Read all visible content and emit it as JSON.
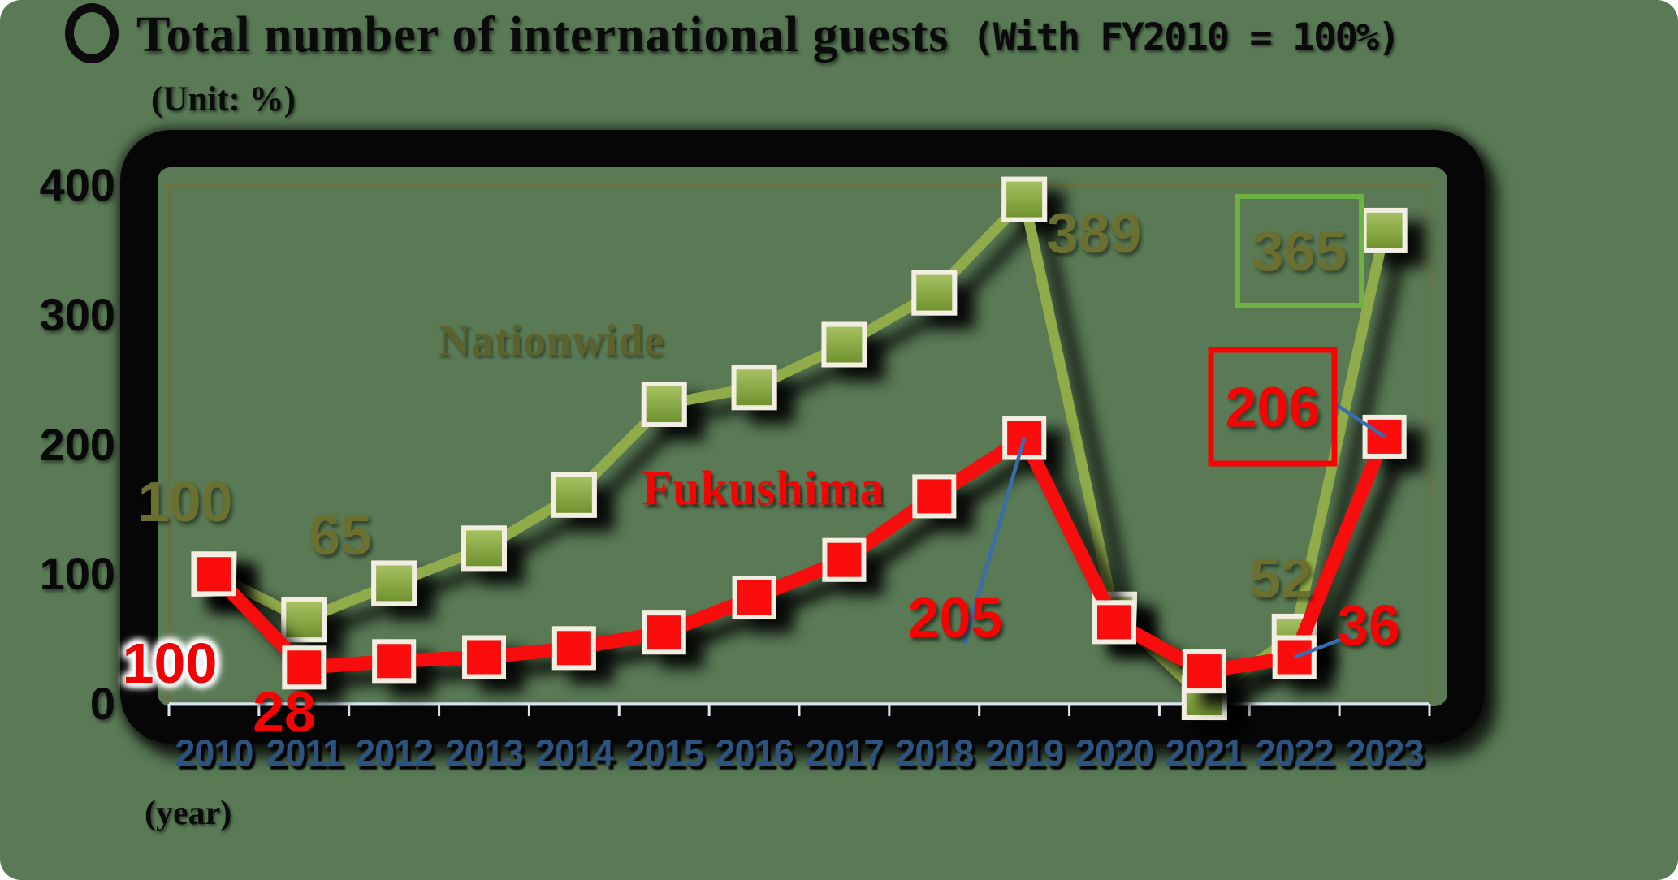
{
  "background_color": "#597a55",
  "chart_data": {
    "type": "line",
    "title": "Total number of international guests",
    "title_note": "(With FY2010 = 100%)",
    "unit_label": "(Unit: %)",
    "x_axis_label": "(year)",
    "categories": [
      "2010",
      "2011",
      "2012",
      "2013",
      "2014",
      "2015",
      "2016",
      "2017",
      "2018",
      "2019",
      "2020",
      "2021",
      "2022",
      "2023"
    ],
    "ylim": [
      0,
      400
    ],
    "yticks": [
      0,
      100,
      200,
      300,
      400
    ],
    "grid": false,
    "legend_position": "inline-floating-labels",
    "series": [
      {
        "name": "Nationwide",
        "marker": "square",
        "values": [
          100,
          65,
          93,
          120,
          161,
          231,
          244,
          277,
          317,
          389,
          69,
          5,
          52,
          365
        ]
      },
      {
        "name": "Fukushima",
        "marker": "square",
        "values": [
          100,
          28,
          33,
          36,
          43,
          55,
          82,
          111,
          160,
          205,
          63,
          25,
          36,
          206
        ]
      }
    ],
    "data_labels": [
      {
        "id": "nw-2010",
        "series": "Nationwide",
        "year": "2010",
        "text": "100",
        "boxed": false
      },
      {
        "id": "nw-2011",
        "series": "Nationwide",
        "year": "2011",
        "text": "65",
        "boxed": false
      },
      {
        "id": "nw-2019",
        "series": "Nationwide",
        "year": "2019",
        "text": "389",
        "boxed": false
      },
      {
        "id": "nw-2022",
        "series": "Nationwide",
        "year": "2022",
        "text": "52",
        "boxed": false
      },
      {
        "id": "nw-2023",
        "series": "Nationwide",
        "year": "2023",
        "text": "365",
        "boxed": true
      },
      {
        "id": "fk-2010",
        "series": "Fukushima",
        "year": "2010",
        "text": "100",
        "boxed": false,
        "glow": true
      },
      {
        "id": "fk-2011",
        "series": "Fukushima",
        "year": "2011",
        "text": "28",
        "boxed": false
      },
      {
        "id": "fk-2019",
        "series": "Fukushima",
        "year": "2019",
        "text": "205",
        "boxed": false
      },
      {
        "id": "fk-2022",
        "series": "Fukushima",
        "year": "2022",
        "text": "36",
        "boxed": false
      },
      {
        "id": "fk-2023",
        "series": "Fukushima",
        "year": "2023",
        "text": "206",
        "boxed": true
      }
    ],
    "colors": {
      "background": "#597a55",
      "nationwide_line": "#90ab4a",
      "nationwide_marker_top": "#a9c464",
      "nationwide_marker_bottom": "#6d8f2c",
      "nationwide_label": "#6b7031",
      "nationwide_box_border": "#6fb244",
      "fukushima_line": "#f70707",
      "fukushima_marker": "#fb0a0a",
      "fukushima_label": "#f50404",
      "fukushima_box_border": "#f50404",
      "marker_border": "#f2efe2",
      "year_label": "#2d5480",
      "axis_baseline": "#d9e5f2",
      "plot_inner_border": "#70713a",
      "callout_line": "#3a6cb0",
      "frame": "#060606",
      "title_text": "#0b0b0b"
    }
  }
}
